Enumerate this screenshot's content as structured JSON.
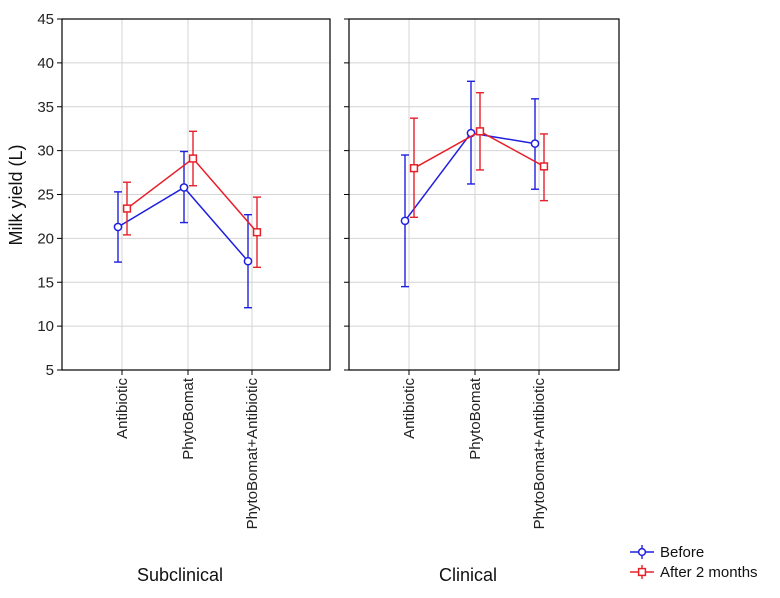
{
  "colors": {
    "before": "#1f1fe0",
    "after": "#e8202a",
    "grid": "#d4d4d4",
    "axis": "#000000"
  },
  "chart_data": {
    "type": "line",
    "ylabel": "Milk yield (L)",
    "ylim": [
      5,
      45
    ],
    "yticks": [
      5,
      10,
      15,
      20,
      25,
      30,
      35,
      40,
      45
    ],
    "categories": [
      "Antibiotic",
      "PhytoBomat",
      "PhytoBomat+Antibiotic"
    ],
    "legend": [
      "Before",
      "After 2 months"
    ],
    "legend_position": "bottom-right",
    "panels": [
      {
        "title": "Subclinical",
        "series": [
          {
            "name": "Before",
            "marker": "circle",
            "values": [
              21.3,
              25.8,
              17.4
            ],
            "lower": [
              17.3,
              21.8,
              12.1
            ],
            "upper": [
              25.3,
              29.9,
              22.7
            ]
          },
          {
            "name": "After 2 months",
            "marker": "square",
            "values": [
              23.4,
              29.1,
              20.7
            ],
            "lower": [
              20.4,
              26.0,
              16.7
            ],
            "upper": [
              26.4,
              32.2,
              24.7
            ]
          }
        ]
      },
      {
        "title": "Clinical",
        "series": [
          {
            "name": "Before",
            "marker": "circle",
            "values": [
              22.0,
              32.0,
              30.8
            ],
            "lower": [
              14.5,
              26.2,
              25.6
            ],
            "upper": [
              29.5,
              37.9,
              35.9
            ]
          },
          {
            "name": "After 2 months",
            "marker": "square",
            "values": [
              28.0,
              32.2,
              28.2
            ],
            "lower": [
              22.4,
              27.8,
              24.3
            ],
            "upper": [
              33.7,
              36.6,
              31.9
            ]
          }
        ]
      }
    ]
  }
}
